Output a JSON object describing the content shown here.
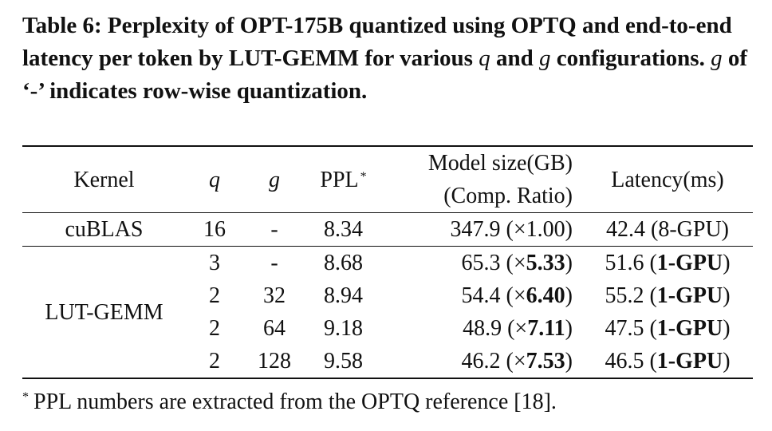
{
  "caption": {
    "label": "Table 6:",
    "part1": "Perplexity of OPT-175B quantized using OPTQ and end-to-end latency per token by LUT-GEMM for various",
    "var_q": "q",
    "and": "and",
    "var_g": "g",
    "part2": "configurations.",
    "var_g2": "g",
    "part3": "of ‘-’ indicates row-wise quantization."
  },
  "table": {
    "headers": {
      "kernel": "Kernel",
      "q": "q",
      "g": "g",
      "ppl": "PPL",
      "ppl_marker": "*",
      "size_line1": "Model size(GB)",
      "size_line2": "(Comp. Ratio)",
      "latency": "Latency(ms)"
    },
    "rows": [
      {
        "kernel": "cuBLAS",
        "q": "16",
        "g": "-",
        "ppl": "8.34",
        "size": "347.9",
        "ratio_prefix": "(×",
        "ratio": "1.00",
        "ratio_suffix": ")",
        "latency": "42.4",
        "gpu_prefix": "(",
        "gpu": "8-GPU",
        "gpu_suffix": ")"
      },
      {
        "kernel": "LUT-GEMM",
        "q": "3",
        "g": "-",
        "ppl": "8.68",
        "size": "65.3",
        "ratio_prefix": "(×",
        "ratio": "5.33",
        "ratio_suffix": ")",
        "latency": "51.6",
        "gpu_prefix": "(",
        "gpu": "1-GPU",
        "gpu_suffix": ")"
      },
      {
        "kernel": "",
        "q": "2",
        "g": "32",
        "ppl": "8.94",
        "size": "54.4",
        "ratio_prefix": "(×",
        "ratio": "6.40",
        "ratio_suffix": ")",
        "latency": "55.2",
        "gpu_prefix": "(",
        "gpu": "1-GPU",
        "gpu_suffix": ")"
      },
      {
        "kernel": "",
        "q": "2",
        "g": "64",
        "ppl": "9.18",
        "size": "48.9",
        "ratio_prefix": "(×",
        "ratio": "7.11",
        "ratio_suffix": ")",
        "latency": "47.5",
        "gpu_prefix": "(",
        "gpu": "1-GPU",
        "gpu_suffix": ")"
      },
      {
        "kernel": "",
        "q": "2",
        "g": "128",
        "ppl": "9.58",
        "size": "46.2",
        "ratio_prefix": "(×",
        "ratio": "7.53",
        "ratio_suffix": ")",
        "latency": "46.5",
        "gpu_prefix": "(",
        "gpu": "1-GPU",
        "gpu_suffix": ")"
      }
    ]
  },
  "footnote": {
    "marker": "*",
    "text": "PPL numbers are extracted from the OPTQ reference [18]."
  }
}
